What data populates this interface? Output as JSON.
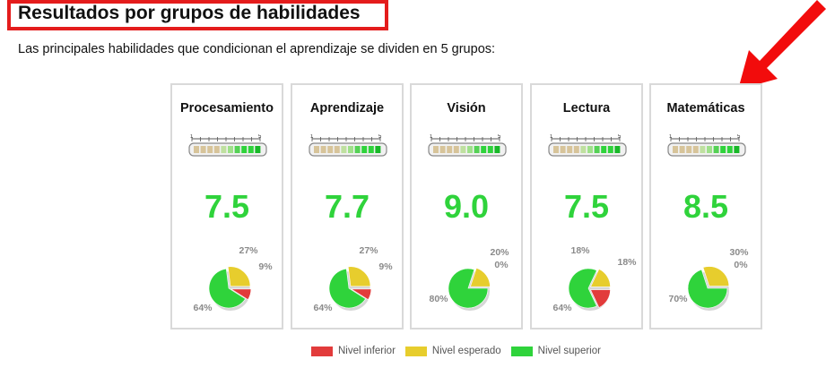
{
  "header": {
    "title": "Resultados por grupos de habilidades",
    "subtitle": "Las principales habilidades que condicionan el aprendizaje se dividen en 5 grupos:"
  },
  "colors": {
    "title_border": "#e41c1c",
    "score": "#2fd33b",
    "inferior": "#e23b3b",
    "esperado": "#e7cd2d",
    "superior": "#2fd33b",
    "arrow": "#f20c0c"
  },
  "gauge_scale": {
    "min_label": "1",
    "max_label": "5"
  },
  "groups": [
    {
      "name": "Procesamiento",
      "score": "7.5",
      "distribution": {
        "superior": 64,
        "esperado": 27,
        "inferior": 9
      },
      "labels": {
        "superior": "64%",
        "esperado": "27%",
        "inferior": "9%"
      }
    },
    {
      "name": "Aprendizaje",
      "score": "7.7",
      "distribution": {
        "superior": 64,
        "esperado": 27,
        "inferior": 9
      },
      "labels": {
        "superior": "64%",
        "esperado": "27%",
        "inferior": "9%"
      }
    },
    {
      "name": "Visión",
      "score": "9.0",
      "distribution": {
        "superior": 80,
        "esperado": 20,
        "inferior": 0
      },
      "labels": {
        "superior": "80%",
        "esperado": "20%",
        "inferior": "0%"
      }
    },
    {
      "name": "Lectura",
      "score": "7.5",
      "distribution": {
        "superior": 64,
        "esperado": 18,
        "inferior": 18
      },
      "labels": {
        "superior": "64%",
        "esperado": "18%",
        "inferior": "18%"
      }
    },
    {
      "name": "Matemáticas",
      "score": "8.5",
      "distribution": {
        "superior": 70,
        "esperado": 30,
        "inferior": 0
      },
      "labels": {
        "superior": "70%",
        "esperado": "30%",
        "inferior": "0%"
      }
    }
  ],
  "legend": {
    "inferior": "Nivel inferior",
    "esperado": "Nivel esperado",
    "superior": "Nivel superior"
  }
}
